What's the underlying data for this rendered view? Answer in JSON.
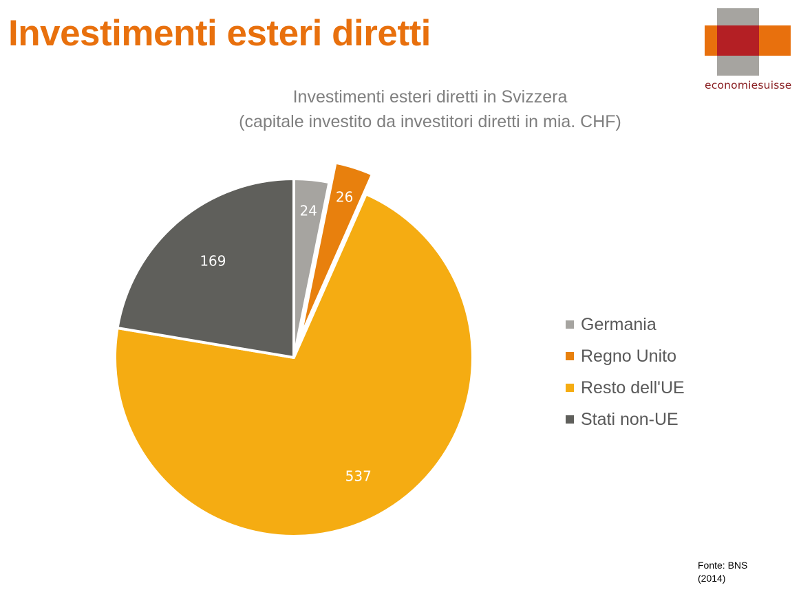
{
  "header": {
    "title": "Investimenti esteri diretti"
  },
  "logo": {
    "wordmark": "economiesuisse"
  },
  "source": {
    "line1": "Fonte: BNS",
    "line2": "(2014)"
  },
  "chart_data": {
    "type": "pie",
    "title": "Investimenti esteri diretti in Svizzera",
    "subtitle": "(capitale investito da investitori diretti in mia. CHF)",
    "categories": [
      "Germania",
      "Regno Unito",
      "Resto dell'UE",
      "Stati non-UE"
    ],
    "values": [
      24,
      26,
      537,
      169
    ],
    "colors": [
      "#a6a4a0",
      "#e8800d",
      "#f5ac12",
      "#5f5f5b"
    ],
    "exploded": [
      "Regno Unito"
    ],
    "legend": "right",
    "data_labels": true
  }
}
